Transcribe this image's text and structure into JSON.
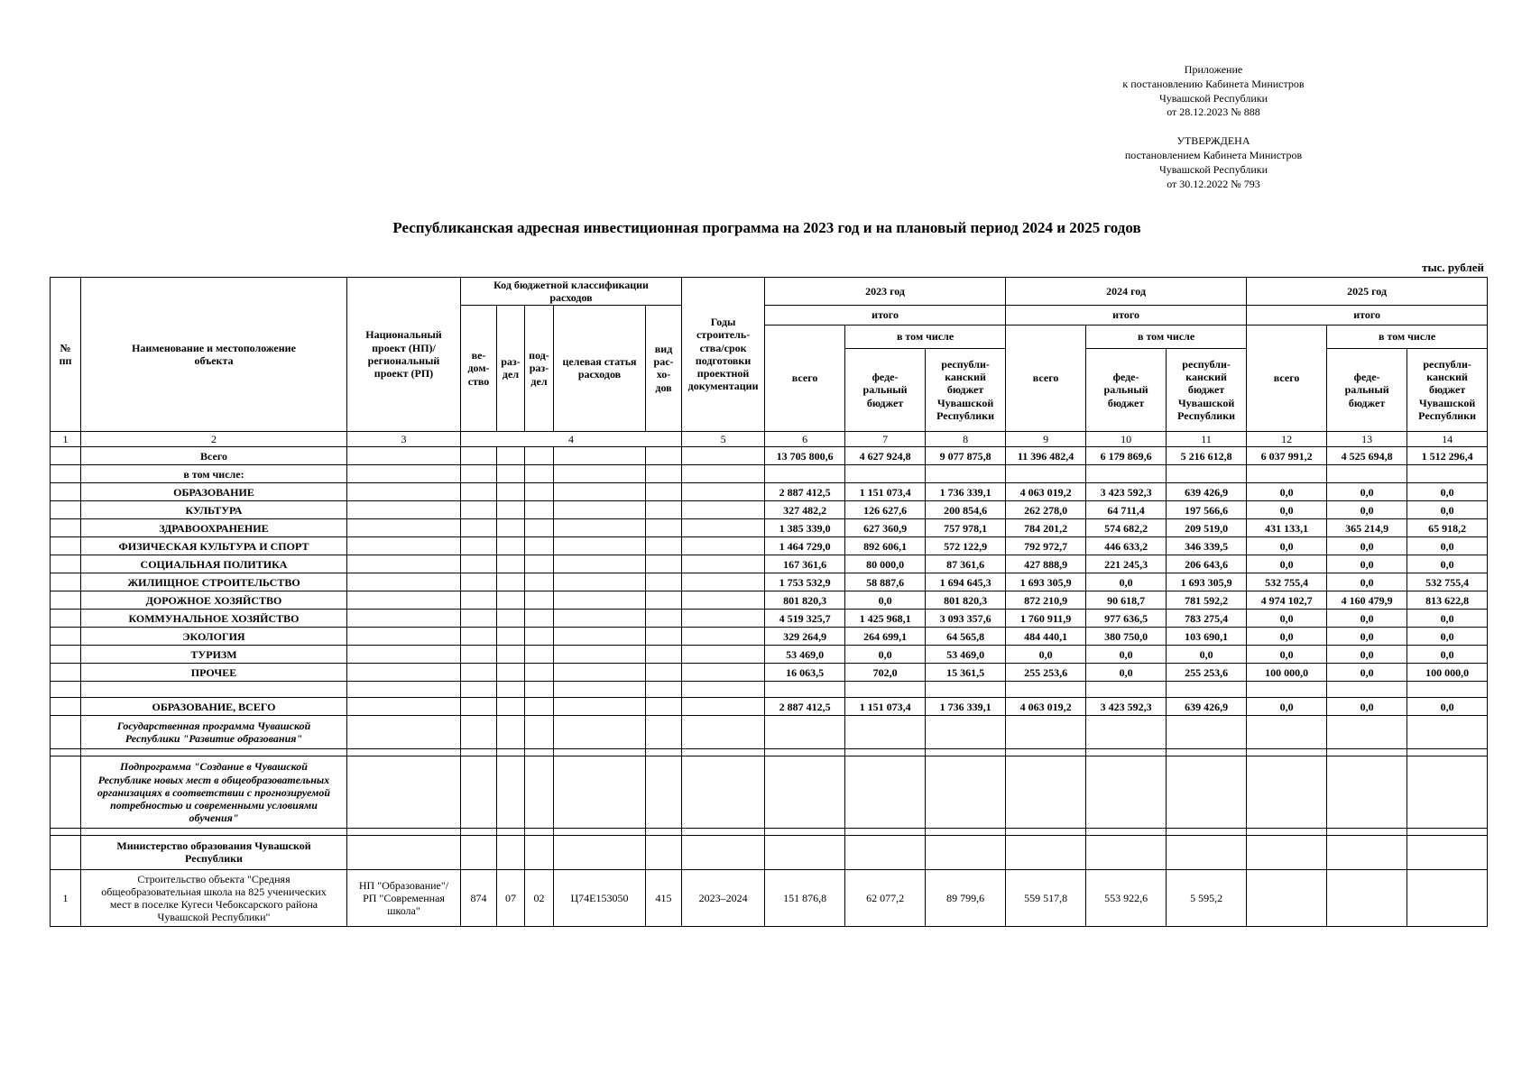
{
  "annotations": {
    "appendix": "Приложение\nк постановлению Кабинета Министров\nЧувашской Республики\nот 28.12.2023  № 888",
    "approval": "УТВЕРЖДЕНА\nпостановлением Кабинета Министров\nЧувашской Республики\nот 30.12.2022  № 793"
  },
  "title": "Республиканская адресная инвестиционная программа на 2023 год и на плановый период 2024 и 2025 годов",
  "units_label": "тыс. рублей",
  "table": {
    "header": {
      "num": "№\nпп",
      "name": "Наименование и местоположение\nобъекта",
      "project": "Национальный\nпроект (НП)/\nрегиональный\nпроект (РП)",
      "budget_code_group": "Код бюджетной классификации\nрасходов",
      "agency": "ве-\nдом-\nство",
      "section": "раз-\nдел",
      "subsection": "под-\nраз-\nдел",
      "target_item": "целевая статья\nрасходов",
      "expense_type": "вид\nрас-\nхо-\nдов",
      "years": "Годы\nстроитель-\nства/срок\nподготовки\nпроектной\nдокументации",
      "year_2023": "2023 год",
      "year_2024": "2024 год",
      "year_2025": "2025 год",
      "total_label": "итого",
      "including_label": "в том числе",
      "all_label": "всего",
      "federal_label": "феде-\nральный\nбюджет",
      "republican_label": "республи-\nканский\nбюджет\nЧувашской\nРеспублики"
    },
    "column_numbers": [
      "1",
      "2",
      "3",
      "4",
      "5",
      "6",
      "7",
      "8",
      "9",
      "10",
      "11",
      "12",
      "13",
      "14"
    ],
    "rows": [
      {
        "style": "total",
        "num": "",
        "name": "Всего",
        "project": "",
        "codes": [
          "",
          "",
          "",
          "",
          ""
        ],
        "years": "",
        "values": [
          "13 705 800,6",
          "4 627 924,8",
          "9 077 875,8",
          "11 396 482,4",
          "6 179 869,6",
          "5 216 612,8",
          "6 037 991,2",
          "4 525 694,8",
          "1 512 296,4"
        ]
      },
      {
        "style": "total",
        "name": "в том числе:",
        "values": []
      },
      {
        "style": "section",
        "name": "ОБРАЗОВАНИЕ",
        "values": [
          "2 887 412,5",
          "1 151 073,4",
          "1 736 339,1",
          "4 063 019,2",
          "3 423 592,3",
          "639 426,9",
          "0,0",
          "0,0",
          "0,0"
        ]
      },
      {
        "style": "section",
        "name": "КУЛЬТУРА",
        "values": [
          "327 482,2",
          "126 627,6",
          "200 854,6",
          "262 278,0",
          "64 711,4",
          "197 566,6",
          "0,0",
          "0,0",
          "0,0"
        ]
      },
      {
        "style": "section",
        "name": "ЗДРАВООХРАНЕНИЕ",
        "values": [
          "1 385 339,0",
          "627 360,9",
          "757 978,1",
          "784 201,2",
          "574 682,2",
          "209 519,0",
          "431 133,1",
          "365 214,9",
          "65 918,2"
        ]
      },
      {
        "style": "section",
        "name": "ФИЗИЧЕСКАЯ КУЛЬТУРА И СПОРТ",
        "values": [
          "1 464 729,0",
          "892 606,1",
          "572 122,9",
          "792 972,7",
          "446 633,2",
          "346 339,5",
          "0,0",
          "0,0",
          "0,0"
        ]
      },
      {
        "style": "section",
        "name": "СОЦИАЛЬНАЯ ПОЛИТИКА",
        "values": [
          "167 361,6",
          "80 000,0",
          "87 361,6",
          "427 888,9",
          "221 245,3",
          "206 643,6",
          "0,0",
          "0,0",
          "0,0"
        ]
      },
      {
        "style": "section",
        "name": "ЖИЛИЩНОЕ СТРОИТЕЛЬСТВО",
        "values": [
          "1 753 532,9",
          "58 887,6",
          "1 694 645,3",
          "1 693 305,9",
          "0,0",
          "1 693 305,9",
          "532 755,4",
          "0,0",
          "532 755,4"
        ]
      },
      {
        "style": "section",
        "name": "ДОРОЖНОЕ ХОЗЯЙСТВО",
        "values": [
          "801 820,3",
          "0,0",
          "801 820,3",
          "872 210,9",
          "90 618,7",
          "781 592,2",
          "4 974 102,7",
          "4 160 479,9",
          "813 622,8"
        ]
      },
      {
        "style": "section",
        "name": "КОММУНАЛЬНОЕ ХОЗЯЙСТВО",
        "values": [
          "4 519 325,7",
          "1 425 968,1",
          "3 093 357,6",
          "1 760 911,9",
          "977 636,5",
          "783 275,4",
          "0,0",
          "0,0",
          "0,0"
        ]
      },
      {
        "style": "section",
        "name": "ЭКОЛОГИЯ",
        "values": [
          "329 264,9",
          "264 699,1",
          "64 565,8",
          "484 440,1",
          "380 750,0",
          "103 690,1",
          "0,0",
          "0,0",
          "0,0"
        ]
      },
      {
        "style": "section",
        "name": "ТУРИЗМ",
        "values": [
          "53 469,0",
          "0,0",
          "53 469,0",
          "0,0",
          "0,0",
          "0,0",
          "0,0",
          "0,0",
          "0,0"
        ]
      },
      {
        "style": "section",
        "name": "ПРОЧЕЕ",
        "values": [
          "16 063,5",
          "702,0",
          "15 361,5",
          "255 253,6",
          "0,0",
          "255 253,6",
          "100 000,0",
          "0,0",
          "100 000,0"
        ]
      },
      {
        "style": "spacer"
      },
      {
        "style": "grand",
        "name": "ОБРАЗОВАНИЕ, ВСЕГО",
        "values": [
          "2 887 412,5",
          "1 151 073,4",
          "1 736 339,1",
          "4 063 019,2",
          "3 423 592,3",
          "639 426,9",
          "0,0",
          "0,0",
          "0,0"
        ]
      },
      {
        "style": "program",
        "name": "Государственная программа Чувашской\nРеспублики \"Развитие образования\""
      },
      {
        "style": "spacer-thin"
      },
      {
        "style": "program",
        "name": "Подпрограмма \"Создание в Чувашской\nРеспублике новых мест в общеобразовательных\nорганизациях в соответствии с прогнозируемой\nпотребностью и современными условиями\nобучения\""
      },
      {
        "style": "spacer-thin"
      },
      {
        "style": "ministry",
        "name": "Министерство образования Чувашской\nРеспублики"
      },
      {
        "style": "object",
        "num": "1",
        "name": "Строительство объекта \"Средняя\nобщеобразовательная школа на 825 ученических\nмест в поселке Кугеси Чебоксарского района\nЧувашской Республики\"",
        "project": "НП \"Образование\"/\nРП \"Современная\nшкола\"",
        "codes": [
          "874",
          "07",
          "02",
          "Ц74Е153050",
          "415"
        ],
        "years": "2023–2024",
        "values": [
          "151 876,8",
          "62 077,2",
          "89 799,6",
          "559 517,8",
          "553 922,6",
          "5 595,2",
          "",
          "",
          ""
        ]
      }
    ]
  }
}
